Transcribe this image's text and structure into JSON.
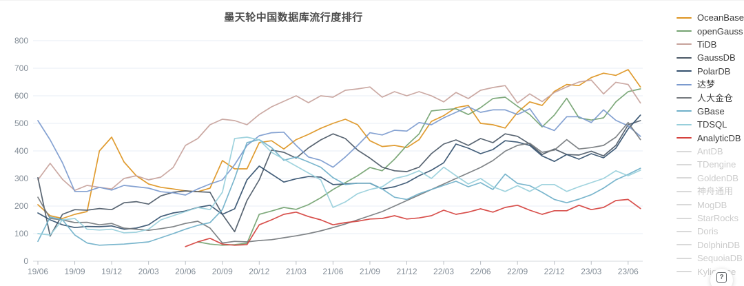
{
  "help_button": {
    "glyph": "?"
  },
  "legend": {
    "items": [
      {
        "label": "OceanBase",
        "active": true
      },
      {
        "label": "openGauss",
        "active": true
      },
      {
        "label": "TiDB",
        "active": true
      },
      {
        "label": "GaussDB",
        "active": true
      },
      {
        "label": "PolarDB",
        "active": true
      },
      {
        "label": "达梦",
        "active": true
      },
      {
        "label": "人大金仓",
        "active": true
      },
      {
        "label": "GBase",
        "active": true
      },
      {
        "label": "TDSQL",
        "active": true
      },
      {
        "label": "AnalyticDB",
        "active": true
      },
      {
        "label": "AntDB",
        "active": false
      },
      {
        "label": "TDengine",
        "active": false
      },
      {
        "label": "GoldenDB",
        "active": false
      },
      {
        "label": "神舟通用",
        "active": false
      },
      {
        "label": "MogDB",
        "active": false
      },
      {
        "label": "StarRocks",
        "active": false
      },
      {
        "label": "Doris",
        "active": false
      },
      {
        "label": "DolphinDB",
        "active": false
      },
      {
        "label": "SequoiaDB",
        "active": false
      },
      {
        "label": "Kyligence",
        "active": false
      }
    ],
    "inactive_color": "#d9d9d9"
  },
  "chart_data": {
    "type": "line",
    "title": "墨天轮中国数据库流行度排行",
    "xlabel": "",
    "ylabel": "",
    "ylim": [
      0,
      800
    ],
    "grid": true,
    "legend_position": "right",
    "y_tick_labels": [
      "0",
      "100",
      "200",
      "300",
      "400",
      "500",
      "600",
      "700",
      "800"
    ],
    "x_tick_labels": [
      "19/06",
      "19/09",
      "19/12",
      "20/03",
      "20/06",
      "20/09",
      "20/12",
      "21/03",
      "21/06",
      "21/09",
      "21/12",
      "22/03",
      "22/06",
      "22/09",
      "22/12",
      "23/03",
      "23/06"
    ],
    "tick_every": 3,
    "x_months": [
      "19/06",
      "19/07",
      "19/08",
      "19/09",
      "19/10",
      "19/11",
      "19/12",
      "20/01",
      "20/02",
      "20/03",
      "20/04",
      "20/05",
      "20/06",
      "20/07",
      "20/08",
      "20/09",
      "20/10",
      "20/11",
      "20/12",
      "21/01",
      "21/02",
      "21/03",
      "21/04",
      "21/05",
      "21/06",
      "21/07",
      "21/08",
      "21/09",
      "21/10",
      "21/11",
      "21/12",
      "22/01",
      "22/02",
      "22/03",
      "22/04",
      "22/05",
      "22/06",
      "22/07",
      "22/08",
      "22/09",
      "22/10",
      "22/11",
      "22/12",
      "23/01",
      "23/02",
      "23/03",
      "23/04",
      "23/05",
      "23/06",
      "23/07"
    ],
    "series": [
      {
        "name": "OceanBase",
        "color": "#dd9420",
        "values": [
          205,
          165,
          155,
          170,
          180,
          400,
          450,
          360,
          310,
          280,
          268,
          262,
          255,
          252,
          265,
          365,
          335,
          335,
          430,
          437,
          407,
          441,
          460,
          482,
          500,
          515,
          495,
          437,
          416,
          420,
          412,
          441,
          507,
          528,
          557,
          565,
          500,
          495,
          483,
          540,
          578,
          565,
          616,
          641,
          637,
          666,
          682,
          674,
          695,
          632
        ]
      },
      {
        "name": "openGauss",
        "color": "#74a371",
        "values": [
          null,
          null,
          null,
          null,
          null,
          null,
          null,
          null,
          null,
          null,
          null,
          null,
          null,
          70,
          62,
          58,
          60,
          65,
          170,
          182,
          195,
          188,
          205,
          230,
          260,
          285,
          310,
          340,
          328,
          370,
          420,
          462,
          545,
          550,
          553,
          532,
          557,
          590,
          595,
          562,
          532,
          487,
          530,
          591,
          520,
          512,
          520,
          578,
          615,
          625
        ]
      },
      {
        "name": "TiDB",
        "color": "#c7a29b",
        "values": [
          295,
          355,
          297,
          257,
          275,
          268,
          262,
          300,
          310,
          295,
          305,
          340,
          420,
          445,
          495,
          515,
          510,
          495,
          532,
          560,
          580,
          600,
          575,
          600,
          595,
          620,
          625,
          632,
          595,
          615,
          600,
          615,
          600,
          578,
          612,
          590,
          620,
          630,
          637,
          574,
          607,
          579,
          612,
          632,
          650,
          657,
          607,
          649,
          641,
          574
        ]
      },
      {
        "name": "GaussDB",
        "color": "#4b5866",
        "values": [
          303,
          91,
          170,
          187,
          185,
          191,
          187,
          212,
          216,
          207,
          237,
          250,
          255,
          252,
          250,
          170,
          107,
          220,
          295,
          403,
          395,
          374,
          411,
          440,
          462,
          445,
          403,
          374,
          341,
          328,
          325,
          341,
          390,
          425,
          440,
          420,
          445,
          430,
          462,
          453,
          425,
          387,
          407,
          387,
          385,
          399,
          382,
          420,
          495,
          510
        ]
      },
      {
        "name": "PolarDB",
        "color": "#33506e",
        "values": [
          175,
          150,
          132,
          122,
          126,
          125,
          128,
          116,
          120,
          132,
          162,
          175,
          182,
          195,
          203,
          170,
          190,
          295,
          345,
          316,
          287,
          299,
          307,
          305,
          278,
          280,
          283,
          283,
          262,
          270,
          285,
          310,
          330,
          357,
          425,
          410,
          390,
          405,
          437,
          432,
          420,
          382,
          362,
          387,
          370,
          390,
          375,
          410,
          480,
          530
        ]
      },
      {
        "name": "达梦",
        "color": "#7b9ace",
        "values": [
          510,
          440,
          357,
          253,
          253,
          268,
          258,
          275,
          270,
          265,
          252,
          248,
          240,
          262,
          280,
          295,
          350,
          420,
          455,
          466,
          468,
          420,
          378,
          366,
          341,
          378,
          420,
          466,
          458,
          475,
          472,
          503,
          495,
          520,
          540,
          560,
          540,
          549,
          549,
          532,
          553,
          491,
          474,
          524,
          524,
          503,
          549,
          511,
          491,
          453
        ]
      },
      {
        "name": "人大金仓",
        "color": "#75797d",
        "values": [
          232,
          155,
          150,
          140,
          141,
          132,
          137,
          120,
          116,
          112,
          118,
          125,
          137,
          145,
          120,
          66,
          72,
          70,
          75,
          78,
          85,
          92,
          100,
          110,
          122,
          135,
          150,
          165,
          180,
          200,
          220,
          240,
          260,
          280,
          300,
          320,
          340,
          365,
          399,
          420,
          428,
          395,
          403,
          441,
          407,
          412,
          420,
          450,
          503,
          441
        ]
      },
      {
        "name": "GBase",
        "color": "#6fb0c9",
        "values": [
          72,
          160,
          150,
          95,
          66,
          58,
          60,
          62,
          66,
          70,
          85,
          100,
          116,
          130,
          140,
          187,
          300,
          430,
          441,
          412,
          366,
          378,
          360,
          341,
          303,
          278,
          283,
          283,
          262,
          232,
          224,
          245,
          260,
          275,
          290,
          270,
          285,
          260,
          316,
          282,
          274,
          250,
          224,
          212,
          225,
          241,
          265,
          295,
          315,
          337
        ]
      },
      {
        "name": "TDSQL",
        "color": "#98cfdb",
        "values": [
          100,
          95,
          150,
          155,
          116,
          113,
          116,
          103,
          105,
          116,
          150,
          165,
          180,
          195,
          187,
          250,
          445,
          450,
          440,
          395,
          370,
          345,
          320,
          295,
          195,
          215,
          245,
          260,
          270,
          300,
          310,
          328,
          300,
          341,
          310,
          280,
          300,
          270,
          253,
          274,
          253,
          278,
          278,
          253,
          270,
          285,
          300,
          328,
          310,
          330
        ]
      },
      {
        "name": "AnalyticDB",
        "color": "#d5413d",
        "values": [
          null,
          null,
          null,
          null,
          null,
          null,
          null,
          null,
          null,
          null,
          null,
          null,
          53,
          70,
          83,
          62,
          58,
          60,
          132,
          150,
          170,
          178,
          162,
          150,
          132,
          140,
          145,
          153,
          155,
          165,
          153,
          157,
          165,
          185,
          170,
          178,
          190,
          178,
          195,
          203,
          185,
          170,
          183,
          183,
          203,
          187,
          195,
          220,
          224,
          191
        ]
      }
    ]
  }
}
